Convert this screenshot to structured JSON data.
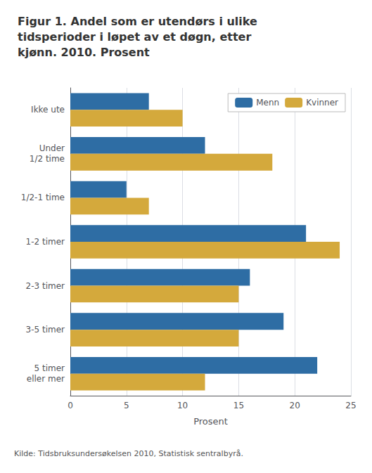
{
  "chart_data": {
    "type": "bar",
    "orientation": "horizontal",
    "title": "Figur 1. Andel som er utendørs i ulike\ntidsperioder i løpet av et døgn, etter\nkjønn. 2010. Prosent",
    "categories": [
      "Ikke ute",
      "Under\n1/2 time",
      "1/2-1 time",
      "1-2 timer",
      "2-3 timer",
      "3-5 timer",
      "5 timer\neller mer"
    ],
    "series": [
      {
        "name": "Menn",
        "color": "#2E6DA4",
        "values": [
          7,
          12,
          5,
          21,
          16,
          19,
          22
        ]
      },
      {
        "name": "Kvinner",
        "color": "#D4A93C",
        "values": [
          10,
          18,
          7,
          24,
          15,
          15,
          12
        ]
      }
    ],
    "xlabel": "Prosent",
    "xlim": [
      0,
      25
    ],
    "xticks": [
      0,
      5,
      10,
      15,
      20,
      25
    ],
    "grid": true,
    "legend": "upper right",
    "annotations": [
      "Kilde: Tidsbruksundersøkelsen 2010, Statistisk sentralbyrå."
    ]
  }
}
